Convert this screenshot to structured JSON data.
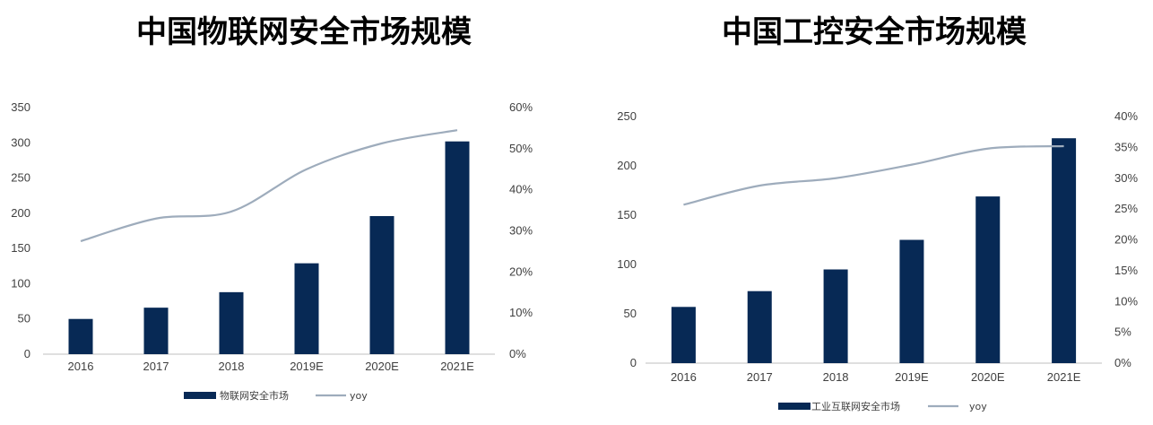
{
  "colors": {
    "bar": "#072955",
    "line": "#9eacbc",
    "axis": "#bfbfbf",
    "text": "#404040"
  },
  "chart_data": [
    {
      "type": "bar",
      "title": "中国物联网安全市场规模",
      "categories": [
        "2016",
        "2017",
        "2018",
        "2019E",
        "2020E",
        "2021E"
      ],
      "series": [
        {
          "name": "物联网安全市场",
          "kind": "bar",
          "axis": "left",
          "values": [
            50,
            66,
            88,
            129,
            196,
            302
          ]
        },
        {
          "name": "yoy",
          "kind": "line",
          "axis": "right",
          "values": [
            27.5,
            33,
            34.7,
            45,
            51.3,
            54.5
          ]
        }
      ],
      "ylim": [
        0,
        350
      ],
      "yticks": [
        0,
        50,
        100,
        150,
        200,
        250,
        300,
        350
      ],
      "y2lim": [
        0,
        60
      ],
      "y2ticks": [
        "0%",
        "10%",
        "20%",
        "30%",
        "40%",
        "50%",
        "60%"
      ],
      "legend": "bottom"
    },
    {
      "type": "bar",
      "title": "中国工控安全市场规模",
      "categories": [
        "2016",
        "2017",
        "2018",
        "2019E",
        "2020E",
        "2021E"
      ],
      "series": [
        {
          "name": "工业互联网安全市场",
          "kind": "bar",
          "axis": "left",
          "values": [
            57,
            73,
            95,
            125,
            169,
            228
          ]
        },
        {
          "name": "yoy",
          "kind": "line",
          "axis": "right",
          "values": [
            25.7,
            28.8,
            30,
            32.2,
            34.8,
            35.2
          ]
        }
      ],
      "ylim": [
        0,
        250
      ],
      "yticks": [
        0,
        50,
        100,
        150,
        200,
        250
      ],
      "y2lim": [
        0,
        40
      ],
      "y2ticks": [
        "0%",
        "5%",
        "10%",
        "15%",
        "20%",
        "25%",
        "30%",
        "35%",
        "40%"
      ],
      "legend": "bottom"
    }
  ]
}
